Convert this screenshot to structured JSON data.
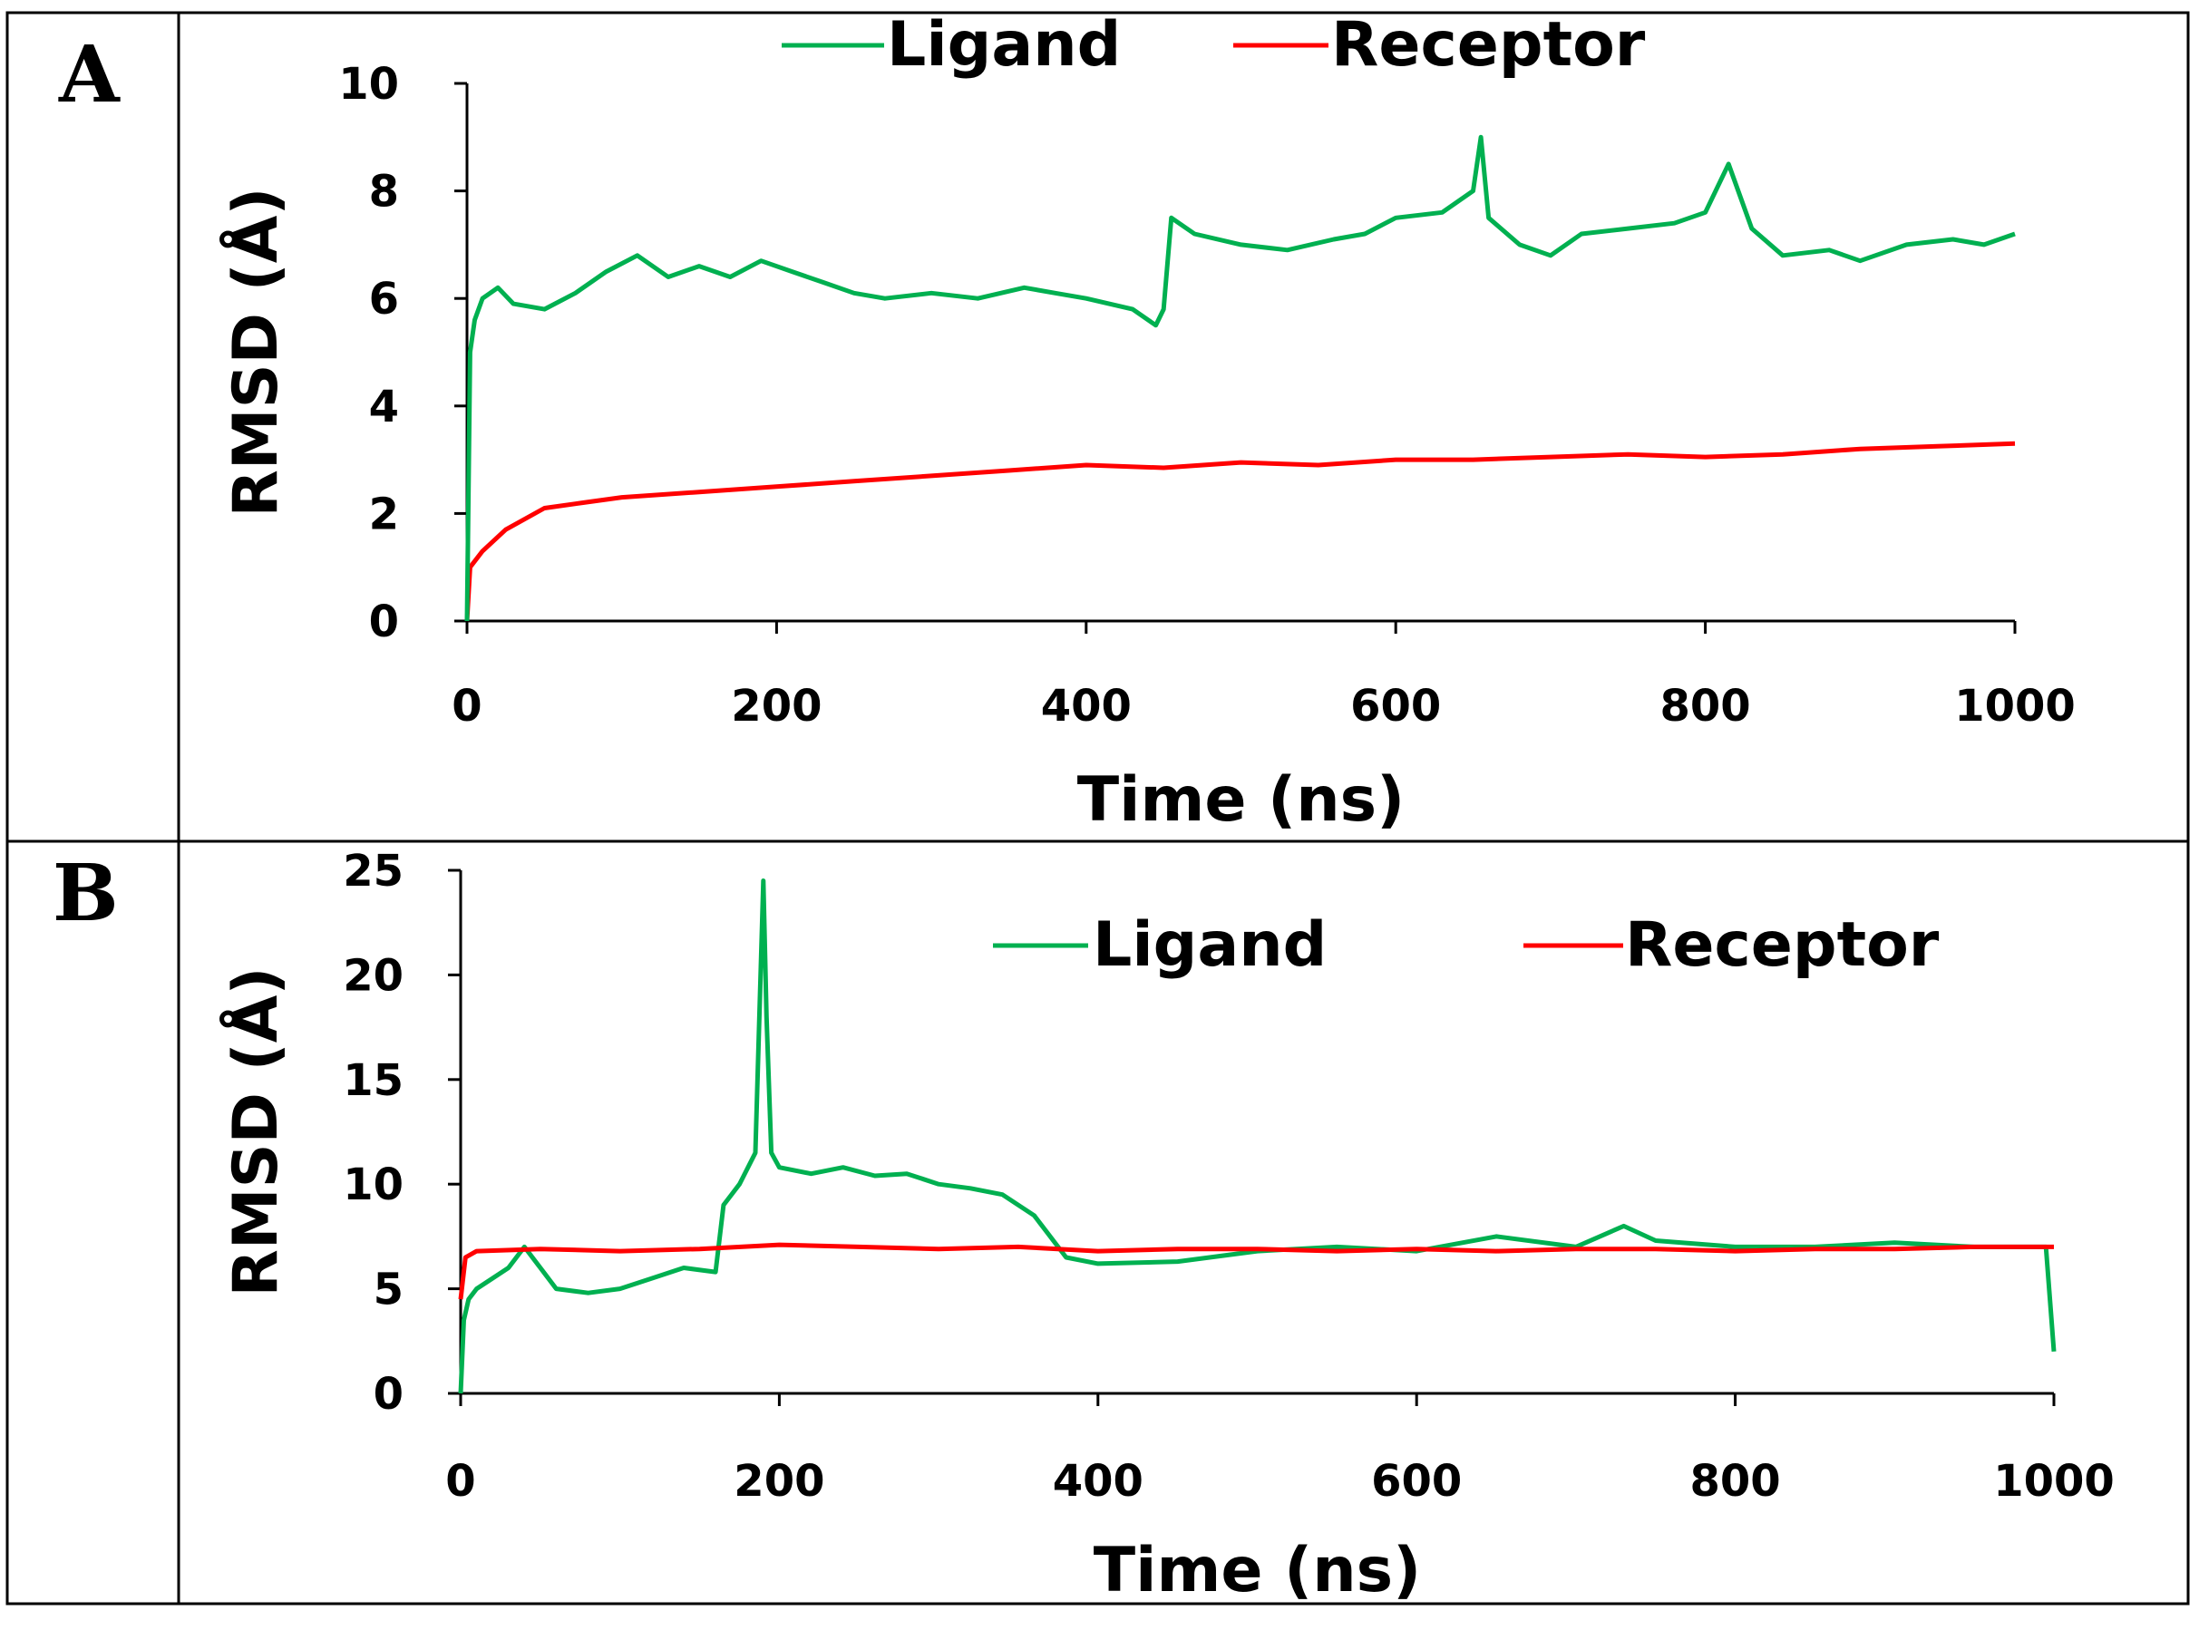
{
  "colors": {
    "ligand": "#00b050",
    "receptor": "#ff0000",
    "axis": "#000000",
    "frame": "#000000"
  },
  "chart_data": [
    {
      "panel": "A",
      "type": "line",
      "xlabel": "Time (ns)",
      "ylabel": "RMSD (Å)",
      "xlim": [
        0,
        1000
      ],
      "ylim": [
        0,
        10
      ],
      "xticks": [
        "0",
        "200",
        "400",
        "600",
        "800",
        "1000"
      ],
      "yticks": [
        "0",
        "2",
        "4",
        "6",
        "8",
        "10"
      ],
      "legend": [
        "Ligand",
        "Receptor"
      ],
      "legend_position": "top-center",
      "series": [
        {
          "name": "Ligand",
          "x": [
            0,
            2,
            5,
            10,
            20,
            30,
            50,
            70,
            90,
            110,
            130,
            150,
            170,
            190,
            210,
            230,
            250,
            270,
            300,
            330,
            360,
            380,
            400,
            430,
            445,
            450,
            455,
            470,
            500,
            530,
            560,
            580,
            600,
            630,
            650,
            655,
            660,
            680,
            700,
            720,
            750,
            780,
            800,
            815,
            830,
            850,
            880,
            900,
            930,
            960,
            980,
            1000
          ],
          "y": [
            0,
            5.0,
            5.6,
            6.0,
            6.2,
            5.9,
            5.8,
            6.1,
            6.5,
            6.8,
            6.4,
            6.6,
            6.4,
            6.7,
            6.5,
            6.3,
            6.1,
            6.0,
            6.1,
            6.0,
            6.2,
            6.1,
            6.0,
            5.8,
            5.5,
            5.8,
            7.5,
            7.2,
            7.0,
            6.9,
            7.1,
            7.2,
            7.5,
            7.6,
            8.0,
            9.0,
            7.5,
            7.0,
            6.8,
            7.2,
            7.3,
            7.4,
            7.6,
            8.5,
            7.3,
            6.8,
            6.9,
            6.7,
            7.0,
            7.1,
            7.0,
            7.2
          ]
        },
        {
          "name": "Receptor",
          "x": [
            0,
            2,
            10,
            25,
            50,
            75,
            100,
            150,
            200,
            250,
            300,
            350,
            400,
            450,
            500,
            550,
            600,
            650,
            700,
            750,
            800,
            850,
            900,
            950,
            1000
          ],
          "y": [
            0,
            1.0,
            1.3,
            1.7,
            2.1,
            2.2,
            2.3,
            2.4,
            2.5,
            2.6,
            2.7,
            2.8,
            2.9,
            2.85,
            2.95,
            2.9,
            3.0,
            3.0,
            3.05,
            3.1,
            3.05,
            3.1,
            3.2,
            3.25,
            3.3
          ]
        }
      ]
    },
    {
      "panel": "B",
      "type": "line",
      "xlabel": "Time (ns)",
      "ylabel": "RMSD (Å)",
      "xlim": [
        0,
        1000
      ],
      "ylim": [
        0,
        25
      ],
      "xticks": [
        "0",
        "200",
        "400",
        "600",
        "800",
        "1000"
      ],
      "yticks": [
        "0",
        "5",
        "10",
        "15",
        "20",
        "25"
      ],
      "legend": [
        "Ligand",
        "Receptor"
      ],
      "legend_position": "top-right",
      "series": [
        {
          "name": "Ligand",
          "x": [
            0,
            2,
            5,
            10,
            20,
            30,
            40,
            50,
            60,
            80,
            100,
            120,
            140,
            160,
            165,
            170,
            175,
            185,
            190,
            192,
            195,
            200,
            220,
            240,
            260,
            280,
            300,
            320,
            340,
            360,
            370,
            380,
            400,
            450,
            500,
            550,
            600,
            650,
            700,
            730,
            750,
            800,
            850,
            900,
            950,
            995,
            1000
          ],
          "y": [
            0,
            3.5,
            4.5,
            5.0,
            5.5,
            6.0,
            7.0,
            6.0,
            5.0,
            4.8,
            5.0,
            5.5,
            6.0,
            5.8,
            9.0,
            9.5,
            10.0,
            11.5,
            24.5,
            18.0,
            11.5,
            10.8,
            10.5,
            10.8,
            10.4,
            10.5,
            10.0,
            9.8,
            9.5,
            8.5,
            7.5,
            6.5,
            6.2,
            6.3,
            6.8,
            7.0,
            6.8,
            7.5,
            7.0,
            8.0,
            7.3,
            7.0,
            7.0,
            7.2,
            7.0,
            7.0,
            2.0
          ]
        },
        {
          "name": "Receptor",
          "x": [
            0,
            3,
            10,
            50,
            100,
            150,
            200,
            250,
            300,
            350,
            400,
            450,
            500,
            550,
            600,
            650,
            700,
            750,
            800,
            850,
            900,
            950,
            1000
          ],
          "y": [
            4.5,
            6.5,
            6.8,
            6.9,
            6.8,
            6.9,
            7.1,
            7.0,
            6.9,
            7.0,
            6.8,
            6.9,
            6.9,
            6.8,
            6.9,
            6.8,
            6.9,
            6.9,
            6.8,
            6.9,
            6.9,
            7.0,
            7.0
          ]
        }
      ]
    }
  ]
}
